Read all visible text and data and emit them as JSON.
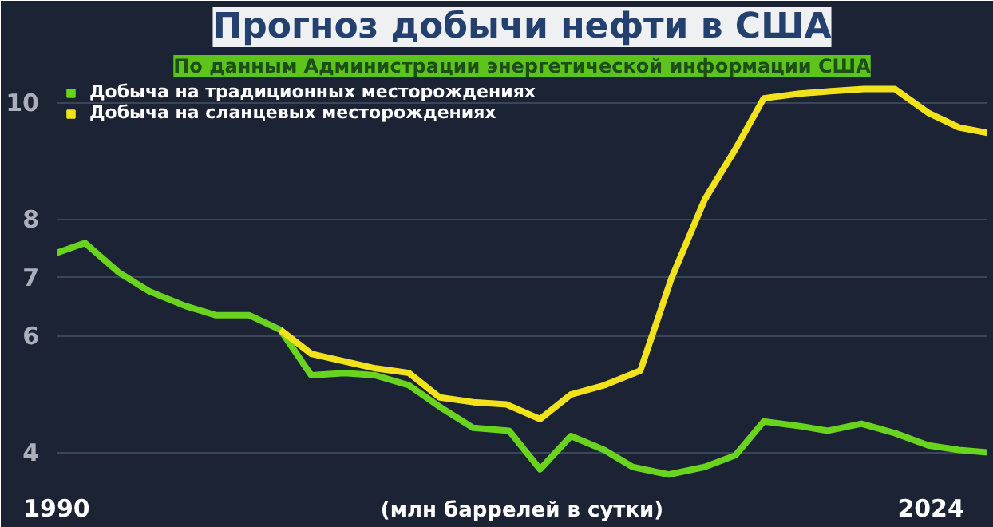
{
  "chart_data": {
    "type": "line",
    "title": "Прогноз добычи нефти в США",
    "subtitle": "По данным Администрации энергетической информации США",
    "xlabel": "(млн баррелей в сутки)",
    "series": [
      {
        "name": "Добыча на традиционных месторождениях",
        "color": "#6ad31e",
        "x": [
          1990.0,
          1991.1,
          1992.4,
          1993.6,
          1995.0,
          1996.2,
          1997.5,
          1998.7,
          1999.9,
          2001.2,
          2002.4,
          2003.7,
          2004.9,
          2006.2,
          2007.6,
          2008.8,
          2010.0,
          2011.3,
          2012.4,
          2013.8,
          2015.2,
          2016.4,
          2017.5,
          2018.9,
          2020.0,
          2021.3,
          2022.6,
          2023.9,
          2025.1,
          2026.2
        ],
        "values": [
          7.42,
          7.59,
          7.09,
          6.76,
          6.51,
          6.35,
          6.35,
          6.1,
          5.32,
          5.36,
          5.32,
          5.15,
          4.78,
          4.42,
          4.37,
          3.71,
          4.28,
          4.04,
          3.75,
          3.62,
          3.75,
          3.95,
          4.53,
          4.45,
          4.37,
          4.49,
          4.33,
          4.12,
          4.04,
          4.0
        ]
      },
      {
        "name": "Добыча на сланцевых месторождениях",
        "color": "#f2e21c",
        "x": [
          1998.7,
          1999.9,
          2001.2,
          2002.4,
          2003.7,
          2004.9,
          2006.2,
          2007.5,
          2008.8,
          2010.0,
          2011.3,
          2012.7,
          2013.9,
          2015.2,
          2016.4,
          2017.5,
          2018.9,
          2020.1,
          2021.4,
          2022.6,
          2023.9,
          2025.1,
          2026.2
        ],
        "values": [
          6.1,
          5.69,
          5.56,
          5.44,
          5.36,
          4.94,
          4.86,
          4.82,
          4.57,
          4.99,
          5.15,
          5.4,
          6.97,
          8.33,
          9.2,
          10.07,
          10.15,
          10.19,
          10.23,
          10.23,
          9.82,
          9.57,
          9.48
        ]
      }
    ],
    "xlim": [
      1990,
      2026.2
    ],
    "xticks": [
      1990,
      2024
    ],
    "ylim": [
      3.5,
      10.4
    ],
    "yticks": [
      4,
      6,
      7,
      8,
      10
    ],
    "grid": "y",
    "legend": "top left",
    "marker": "none",
    "line_style": "solid"
  }
}
